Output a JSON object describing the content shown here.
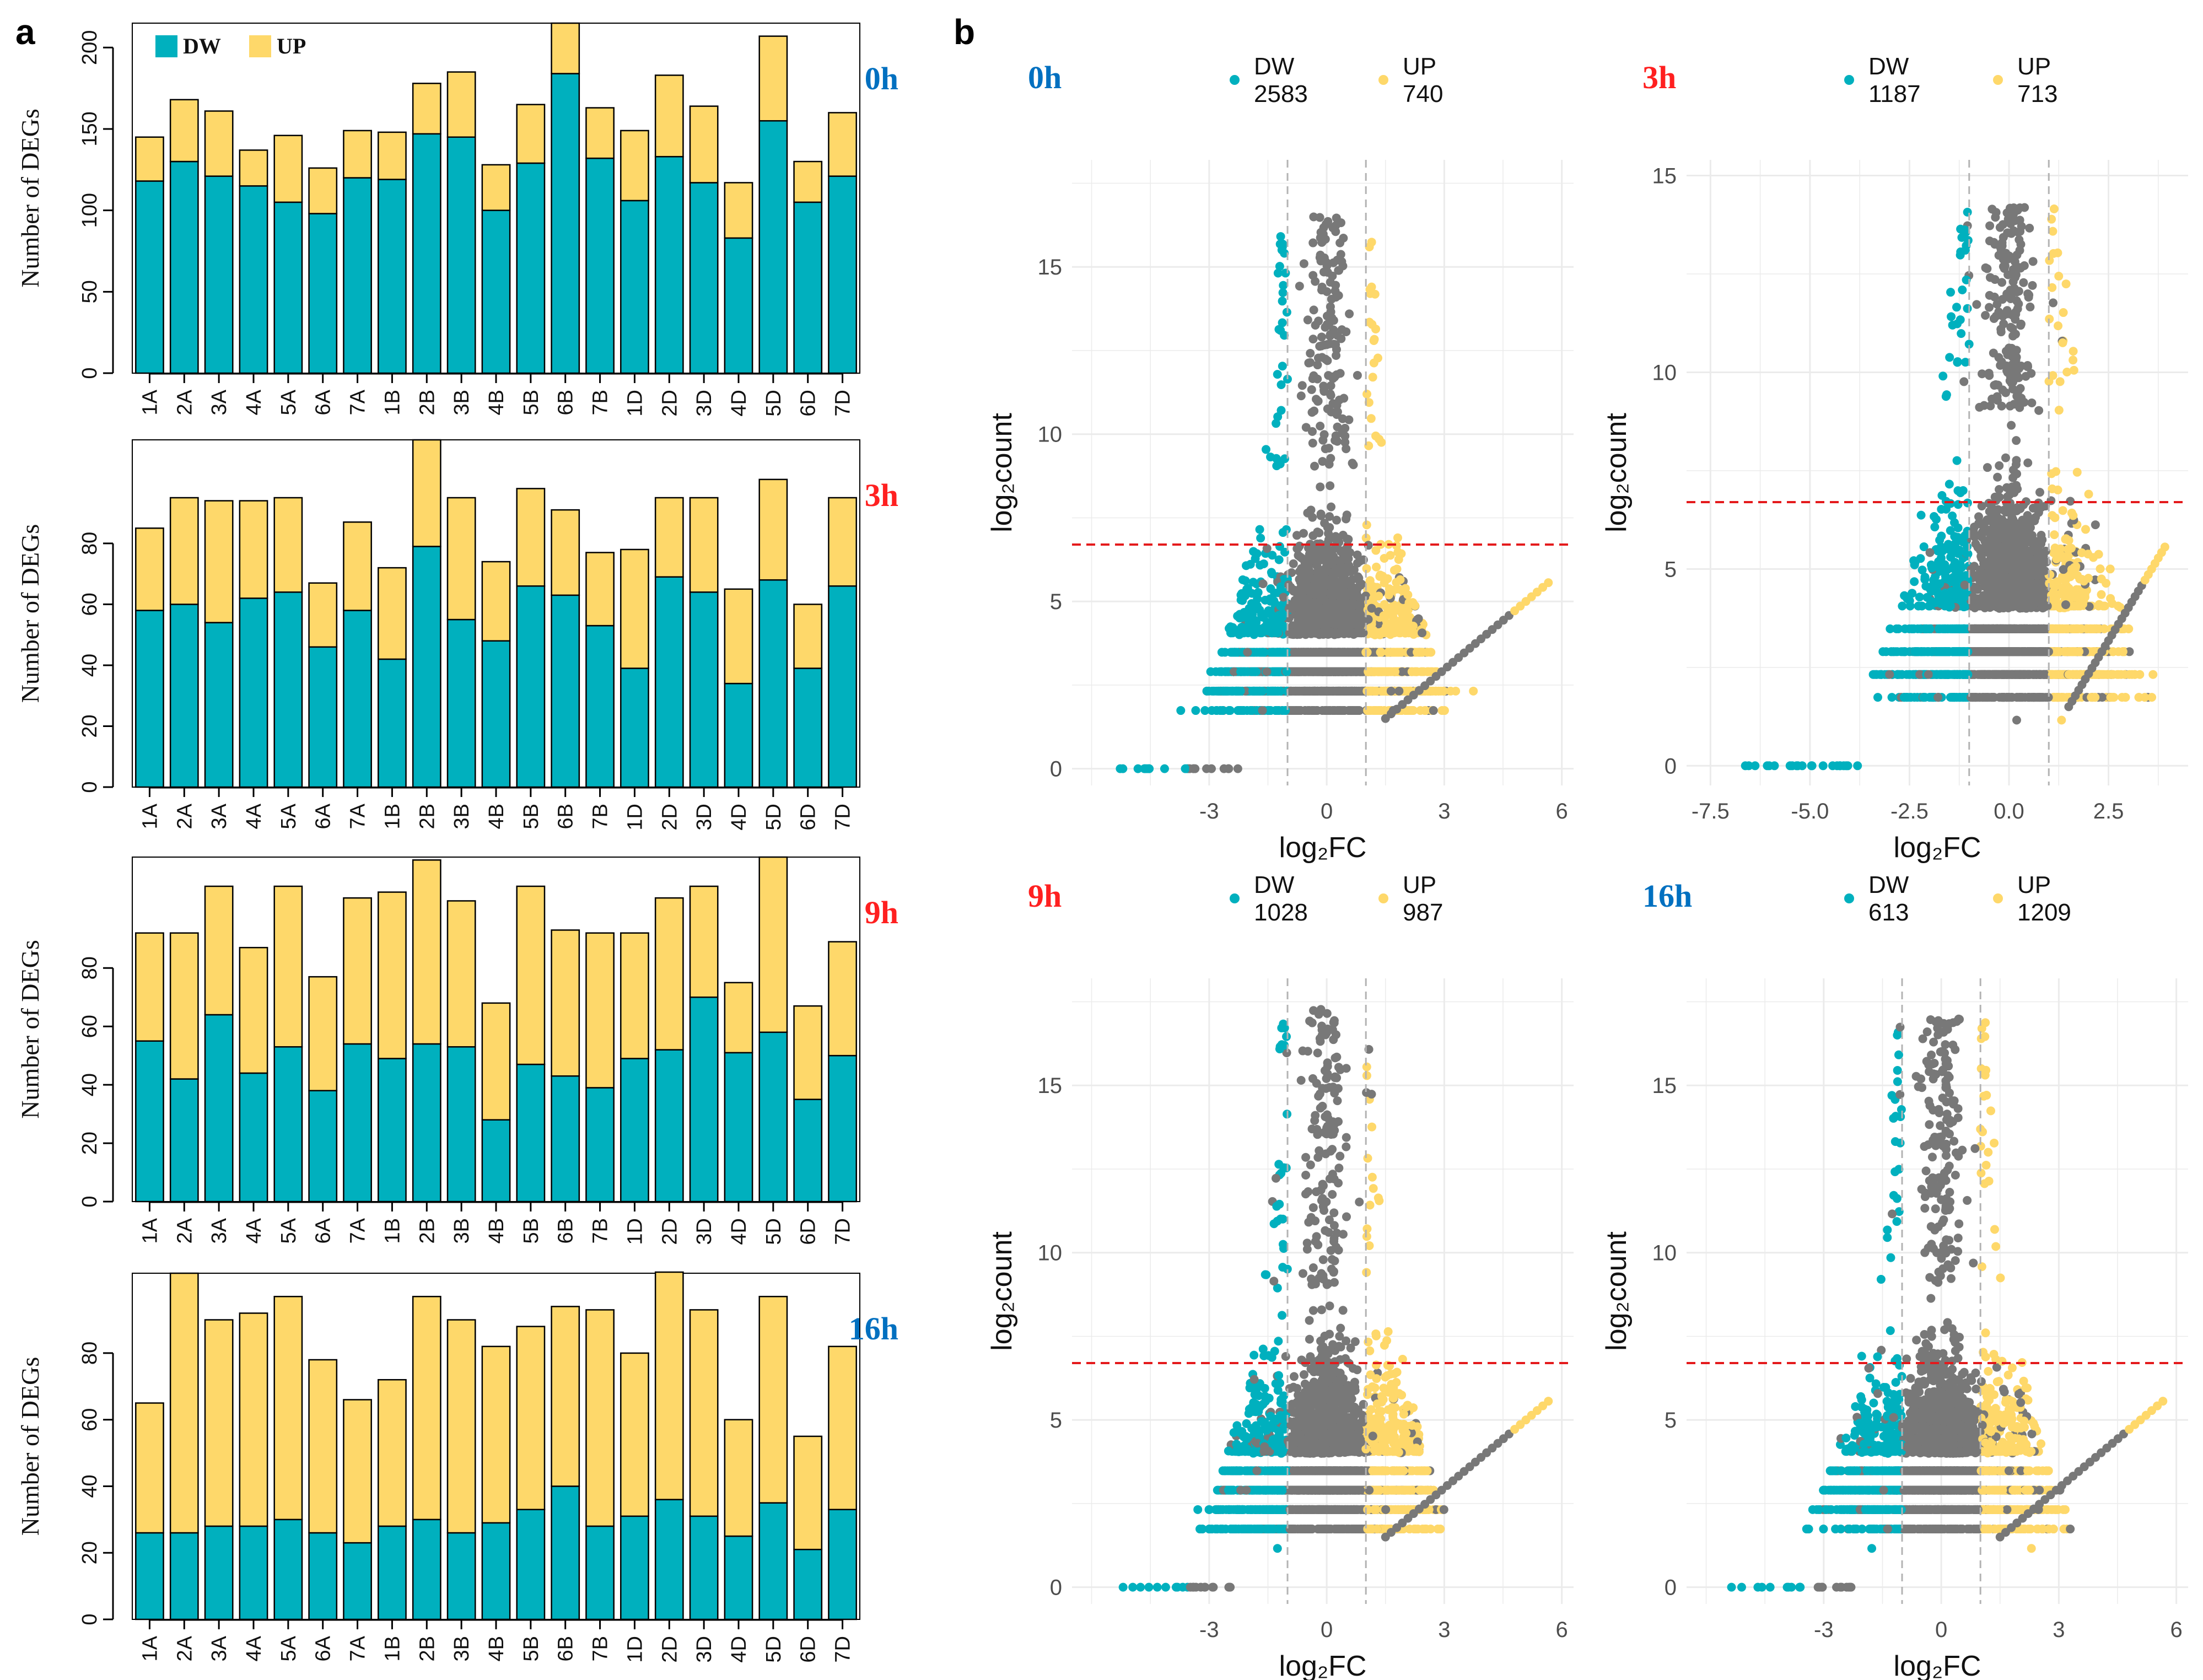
{
  "figure": {
    "panel_a_label": "a",
    "panel_b_label": "b",
    "legend_a": [
      {
        "key": "DW",
        "label": "DW",
        "color": "#00B0BE"
      },
      {
        "key": "UP",
        "label": "UP",
        "color": "#FED86A"
      }
    ],
    "colors": {
      "dw": "#00B0BE",
      "up": "#FED86A",
      "neutral": "#787878",
      "title_blue": "#0070C0",
      "title_red": "#FF2020",
      "threshold_red": "#E41A1C"
    }
  },
  "chart_data": [
    {
      "type": "bar",
      "stacked": true,
      "panel": "a",
      "title": "0h",
      "title_color": "blue",
      "categories": [
        "1A",
        "2A",
        "3A",
        "4A",
        "5A",
        "6A",
        "7A",
        "1B",
        "2B",
        "3B",
        "4B",
        "5B",
        "6B",
        "7B",
        "1D",
        "2D",
        "3D",
        "4D",
        "5D",
        "6D",
        "7D"
      ],
      "series": [
        {
          "name": "DW",
          "values": [
            118,
            130,
            121,
            115,
            105,
            98,
            120,
            119,
            147,
            145,
            100,
            129,
            184,
            132,
            106,
            133,
            117,
            83,
            155,
            105,
            121
          ]
        },
        {
          "name": "UP",
          "values": [
            27,
            38,
            40,
            22,
            41,
            28,
            29,
            29,
            31,
            40,
            28,
            36,
            31,
            31,
            43,
            50,
            47,
            34,
            52,
            25,
            39
          ]
        }
      ],
      "ylabel": "Number of DEGs",
      "xlabel": "",
      "ylim": [
        0,
        215
      ],
      "yticks": [
        0,
        50,
        100,
        150,
        200
      ],
      "legend": "top-left"
    },
    {
      "type": "bar",
      "stacked": true,
      "panel": "a",
      "title": "3h",
      "title_color": "red",
      "categories": [
        "1A",
        "2A",
        "3A",
        "4A",
        "5A",
        "6A",
        "7A",
        "1B",
        "2B",
        "3B",
        "4B",
        "5B",
        "6B",
        "7B",
        "1D",
        "2D",
        "3D",
        "4D",
        "5D",
        "6D",
        "7D"
      ],
      "series": [
        {
          "name": "DW",
          "values": [
            58,
            60,
            54,
            62,
            64,
            46,
            58,
            42,
            79,
            55,
            48,
            66,
            63,
            53,
            39,
            69,
            64,
            34,
            68,
            39,
            66
          ]
        },
        {
          "name": "UP",
          "values": [
            27,
            35,
            40,
            32,
            31,
            21,
            29,
            30,
            35,
            40,
            26,
            32,
            28,
            24,
            39,
            26,
            31,
            31,
            33,
            21,
            29
          ]
        }
      ],
      "ylabel": "Number of DEGs",
      "xlabel": "",
      "ylim": [
        0,
        114
      ],
      "yticks": [
        0,
        20,
        40,
        60,
        80
      ]
    },
    {
      "type": "bar",
      "stacked": true,
      "panel": "a",
      "title": "9h",
      "title_color": "red",
      "categories": [
        "1A",
        "2A",
        "3A",
        "4A",
        "5A",
        "6A",
        "7A",
        "1B",
        "2B",
        "3B",
        "4B",
        "5B",
        "6B",
        "7B",
        "1D",
        "2D",
        "3D",
        "4D",
        "5D",
        "6D",
        "7D"
      ],
      "series": [
        {
          "name": "DW",
          "values": [
            55,
            42,
            64,
            44,
            53,
            38,
            54,
            49,
            54,
            53,
            28,
            47,
            43,
            39,
            49,
            52,
            70,
            51,
            58,
            35,
            50
          ]
        },
        {
          "name": "UP",
          "values": [
            37,
            50,
            44,
            43,
            55,
            39,
            50,
            57,
            63,
            50,
            40,
            61,
            50,
            53,
            43,
            52,
            38,
            24,
            60,
            32,
            39
          ]
        }
      ],
      "ylabel": "Number of DEGs",
      "xlabel": "",
      "ylim": [
        0,
        118
      ],
      "yticks": [
        0,
        20,
        40,
        60,
        80
      ]
    },
    {
      "type": "bar",
      "stacked": true,
      "panel": "a",
      "title": "16h",
      "title_color": "blue",
      "categories": [
        "1A",
        "2A",
        "3A",
        "4A",
        "5A",
        "6A",
        "7A",
        "1B",
        "2B",
        "3B",
        "4B",
        "5B",
        "6B",
        "7B",
        "1D",
        "2D",
        "3D",
        "4D",
        "5D",
        "6D",
        "7D"
      ],
      "series": [
        {
          "name": "DW",
          "values": [
            26,
            26,
            28,
            28,
            30,
            26,
            23,
            28,
            30,
            26,
            29,
            33,
            40,
            28,
            31,
            36,
            31,
            25,
            35,
            21,
            33
          ]
        },
        {
          "name": "UP",
          "values": [
            39,
            78,
            62,
            64,
            67,
            52,
            43,
            44,
            67,
            64,
            53,
            55,
            54,
            65,
            49,
            71,
            62,
            35,
            62,
            34,
            49
          ]
        }
      ],
      "ylabel": "Number of DEGs",
      "xlabel": "",
      "ylim": [
        0,
        104
      ],
      "yticks": [
        0,
        20,
        40,
        60,
        80
      ]
    },
    {
      "type": "scatter",
      "panel": "b",
      "title": "0h",
      "title_color": "blue",
      "legend": [
        {
          "name": "DW",
          "count": "2583"
        },
        {
          "name": "UP",
          "count": "740"
        }
      ],
      "xlabel": "log₂FC",
      "ylabel": "log₂count",
      "xlim": [
        -6.5,
        6.3
      ],
      "ylim": [
        -0.5,
        18.2
      ],
      "xticks": [
        -3,
        0,
        3,
        6
      ],
      "xtick_labels": [
        "-3",
        "0",
        "3",
        "6"
      ],
      "yticks": [
        0,
        5,
        10,
        15
      ],
      "fc_threshold": [
        -1,
        1
      ],
      "count_threshold": 6.7,
      "seed": 11,
      "n_points": 3500,
      "spread": {
        "neg_fc": 3.0,
        "pos_fc": 2.6,
        "max_count": 16.5
      }
    },
    {
      "type": "scatter",
      "panel": "b",
      "title": "3h",
      "title_color": "red",
      "legend": [
        {
          "name": "DW",
          "count": "1187"
        },
        {
          "name": "UP",
          "count": "713"
        }
      ],
      "xlabel": "log₂FC",
      "ylabel": "log₂count",
      "xlim": [
        -8.1,
        4.5
      ],
      "ylim": [
        -0.5,
        15.4
      ],
      "xticks": [
        -7.5,
        -5,
        -2.5,
        0,
        2.5
      ],
      "xtick_labels": [
        "-7.5",
        "-5.0",
        "-2.5",
        "0.0",
        "2.5"
      ],
      "yticks": [
        0,
        5,
        10,
        15
      ],
      "fc_threshold": [
        -1,
        1
      ],
      "count_threshold": 6.7,
      "seed": 23,
      "n_points": 3500,
      "spread": {
        "neg_fc": 3.6,
        "pos_fc": 2.2,
        "max_count": 14.2
      }
    },
    {
      "type": "scatter",
      "panel": "b",
      "title": "9h",
      "title_color": "red",
      "legend": [
        {
          "name": "DW",
          "count": "1028"
        },
        {
          "name": "UP",
          "count": "987"
        }
      ],
      "xlabel": "log₂FC",
      "ylabel": "log₂count",
      "xlim": [
        -6.5,
        6.3
      ],
      "ylim": [
        -0.5,
        18.2
      ],
      "xticks": [
        -3,
        0,
        3,
        6
      ],
      "xtick_labels": [
        "-3",
        "0",
        "3",
        "6"
      ],
      "yticks": [
        0,
        5,
        10,
        15
      ],
      "fc_threshold": [
        -1,
        1
      ],
      "count_threshold": 6.7,
      "seed": 37,
      "n_points": 3500,
      "spread": {
        "neg_fc": 2.7,
        "pos_fc": 3.0,
        "max_count": 17.3
      }
    },
    {
      "type": "scatter",
      "panel": "b",
      "title": "16h",
      "title_color": "blue",
      "legend": [
        {
          "name": "DW",
          "count": "613"
        },
        {
          "name": "UP",
          "count": "1209"
        }
      ],
      "xlabel": "log₂FC",
      "ylabel": "log₂count",
      "xlim": [
        -6.5,
        6.3
      ],
      "ylim": [
        -0.5,
        18.2
      ],
      "xticks": [
        -3,
        0,
        3,
        6
      ],
      "xtick_labels": [
        "-3",
        "0",
        "3",
        "6"
      ],
      "yticks": [
        0,
        5,
        10,
        15
      ],
      "fc_threshold": [
        -1,
        1
      ],
      "count_threshold": 6.7,
      "seed": 53,
      "n_points": 3500,
      "spread": {
        "neg_fc": 2.5,
        "pos_fc": 3.3,
        "max_count": 17.2
      }
    }
  ]
}
